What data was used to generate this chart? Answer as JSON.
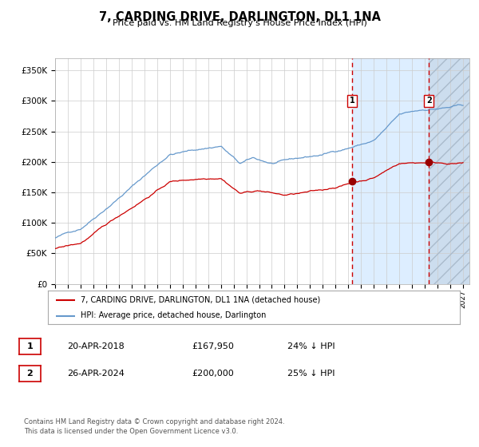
{
  "title": "7, CARDING DRIVE, DARLINGTON, DL1 1NA",
  "subtitle": "Price paid vs. HM Land Registry's House Price Index (HPI)",
  "legend_line1": "7, CARDING DRIVE, DARLINGTON, DL1 1NA (detached house)",
  "legend_line2": "HPI: Average price, detached house, Darlington",
  "annotation1_label": "1",
  "annotation1_date": "20-APR-2018",
  "annotation1_price": "£167,950",
  "annotation1_hpi": "24% ↓ HPI",
  "annotation1_year": 2018.3,
  "annotation1_value": 167950,
  "annotation2_label": "2",
  "annotation2_date": "26-APR-2024",
  "annotation2_price": "£200,000",
  "annotation2_hpi": "25% ↓ HPI",
  "annotation2_year": 2024.32,
  "annotation2_value": 200000,
  "hpi_color": "#6699cc",
  "price_color": "#cc0000",
  "dot_color": "#990000",
  "vline_color": "#cc0000",
  "shade1_color": "#ddeeff",
  "shade2_color": "#ccddee",
  "ylim": [
    0,
    370000
  ],
  "yticks": [
    0,
    50000,
    100000,
    150000,
    200000,
    250000,
    300000,
    350000
  ],
  "ytick_labels": [
    "£0",
    "£50K",
    "£100K",
    "£150K",
    "£200K",
    "£250K",
    "£300K",
    "£350K"
  ],
  "footer": "Contains HM Land Registry data © Crown copyright and database right 2024.\nThis data is licensed under the Open Government Licence v3.0.",
  "background_color": "#ffffff",
  "grid_color": "#cccccc"
}
